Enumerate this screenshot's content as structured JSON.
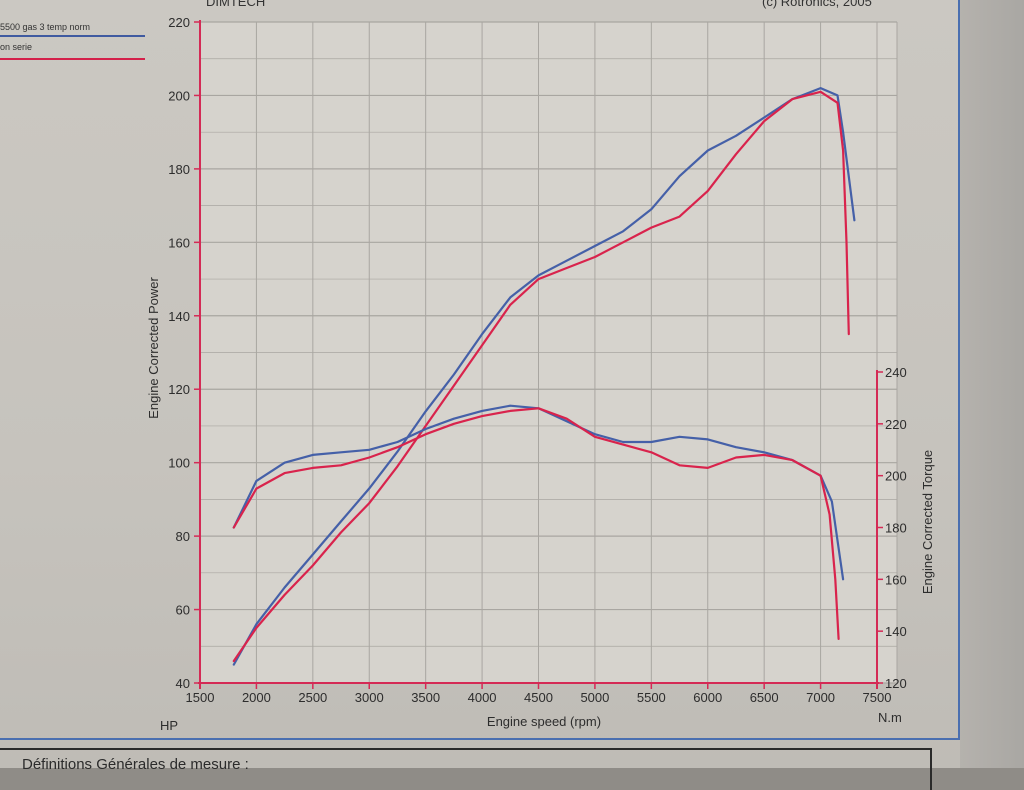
{
  "header": {
    "left_text": "DIMTECH",
    "right_text": "(c) Rotronics, 2005"
  },
  "legend": [
    {
      "label": "5500 gas 3  temp norm",
      "color": "#3f5aa0"
    },
    {
      "label": "on serie",
      "color": "#d4204a"
    }
  ],
  "footer": {
    "text": "Définitions Générales de mesure :"
  },
  "colors": {
    "axis": "#d42a55",
    "grid": "#a9a6a1",
    "series_blue": "#4560a8",
    "series_red": "#d9234c"
  },
  "chart_data": {
    "type": "line",
    "xlabel": "Engine speed (rpm)",
    "ylabel_left": "Engine Corrected Power",
    "ylabel_right": "Engine Corrected Torque",
    "unit_left": "HP",
    "unit_right": "N.m",
    "xlim": [
      1500,
      7500
    ],
    "ylim_left": [
      40,
      220
    ],
    "ylim_right": [
      120,
      240
    ],
    "x_ticks": [
      1500,
      2000,
      2500,
      3000,
      3500,
      4000,
      4500,
      5000,
      5500,
      6000,
      6500,
      7000,
      7500
    ],
    "y_ticks_left": [
      40,
      60,
      80,
      100,
      120,
      140,
      160,
      180,
      200,
      220
    ],
    "y_ticks_right": [
      120,
      140,
      160,
      180,
      200,
      220,
      240
    ],
    "grid": true,
    "series": [
      {
        "name": "5500 gas 3  temp norm",
        "kind": "power",
        "axis": "left",
        "color": "#4560a8",
        "x": [
          1800,
          2000,
          2250,
          2500,
          2750,
          3000,
          3250,
          3500,
          3750,
          4000,
          4250,
          4500,
          4750,
          5000,
          5250,
          5500,
          5750,
          6000,
          6250,
          6500,
          6750,
          7000,
          7150,
          7200,
          7300
        ],
        "y": [
          45,
          56,
          66,
          75,
          84,
          93,
          103,
          114,
          124,
          135,
          145,
          151,
          155,
          159,
          163,
          169,
          178,
          185,
          189,
          194,
          199,
          202,
          200,
          190,
          166
        ]
      },
      {
        "name": "on serie",
        "kind": "power",
        "axis": "left",
        "color": "#d9234c",
        "x": [
          1800,
          2000,
          2250,
          2500,
          2750,
          3000,
          3250,
          3500,
          3750,
          4000,
          4250,
          4500,
          4750,
          5000,
          5250,
          5500,
          5750,
          6000,
          6250,
          6500,
          6750,
          7000,
          7150,
          7200,
          7230,
          7250
        ],
        "y": [
          46,
          55,
          64,
          72,
          81,
          89,
          99,
          110,
          121,
          132,
          143,
          150,
          153,
          156,
          160,
          164,
          167,
          174,
          184,
          193,
          199,
          201,
          198,
          185,
          160,
          135
        ]
      },
      {
        "name": "5500 gas 3  temp norm",
        "kind": "torque",
        "axis": "right",
        "color": "#4560a8",
        "x": [
          1800,
          2000,
          2250,
          2500,
          2750,
          3000,
          3250,
          3500,
          3750,
          4000,
          4250,
          4500,
          4750,
          5000,
          5250,
          5500,
          5750,
          6000,
          6250,
          6500,
          6750,
          7000,
          7100,
          7150,
          7200
        ],
        "y": [
          180,
          198,
          205,
          208,
          209,
          210,
          213,
          218,
          222,
          225,
          227,
          226,
          221,
          216,
          213,
          213,
          215,
          214,
          211,
          209,
          206,
          200,
          190,
          175,
          160
        ]
      },
      {
        "name": "on serie",
        "kind": "torque",
        "axis": "right",
        "color": "#d9234c",
        "x": [
          1800,
          2000,
          2250,
          2500,
          2750,
          3000,
          3250,
          3500,
          3750,
          4000,
          4250,
          4500,
          4750,
          5000,
          5250,
          5500,
          5750,
          6000,
          6250,
          6500,
          6750,
          7000,
          7080,
          7130,
          7160
        ],
        "y": [
          180,
          195,
          201,
          203,
          204,
          207,
          211,
          216,
          220,
          223,
          225,
          226,
          222,
          215,
          212,
          209,
          204,
          203,
          207,
          208,
          206,
          200,
          185,
          160,
          137
        ]
      }
    ]
  }
}
